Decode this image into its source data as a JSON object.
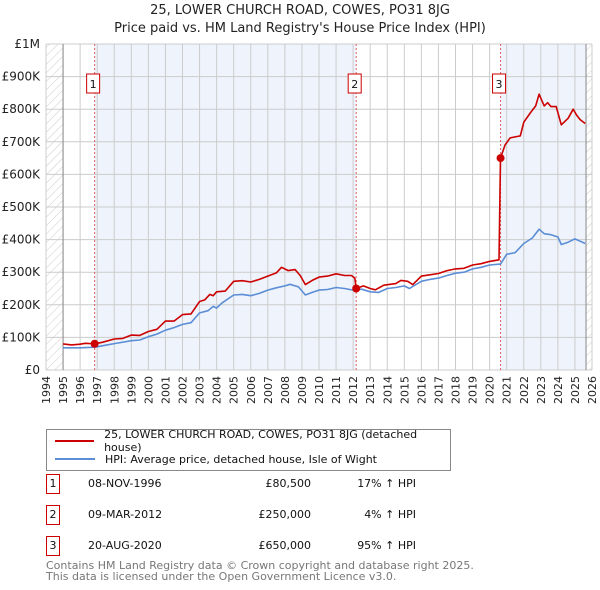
{
  "title_line1": "25, LOWER CHURCH ROAD, COWES, PO31 8JG",
  "title_line2": "Price paid vs. HM Land Registry's House Price Index (HPI)",
  "colors": {
    "property": "#cc0000",
    "hpi": "#5b8ed6",
    "shade": "#eef3fc",
    "grid": "#cccccc"
  },
  "chart_data": {
    "type": "line",
    "title": "25, LOWER CHURCH ROAD, COWES, PO31 8JG - Price paid vs. HM Land Registry's House Price Index (HPI)",
    "xlim": [
      1994,
      2026
    ],
    "ylim": [
      0,
      1000000
    ],
    "data_end": 2025.65,
    "xticks": [
      "1994",
      "1995",
      "1996",
      "1997",
      "1998",
      "1999",
      "2000",
      "2001",
      "2002",
      "2003",
      "2004",
      "2005",
      "2006",
      "2007",
      "2008",
      "2009",
      "2010",
      "2011",
      "2012",
      "2013",
      "2014",
      "2015",
      "2016",
      "2017",
      "2018",
      "2019",
      "2020",
      "2021",
      "2022",
      "2023",
      "2024",
      "2025",
      "2026"
    ],
    "yticks": [
      {
        "v": 0,
        "label": "£0"
      },
      {
        "v": 100000,
        "label": "£100K"
      },
      {
        "v": 200000,
        "label": "£200K"
      },
      {
        "v": 300000,
        "label": "£300K"
      },
      {
        "v": 400000,
        "label": "£400K"
      },
      {
        "v": 500000,
        "label": "£500K"
      },
      {
        "v": 600000,
        "label": "£600K"
      },
      {
        "v": 700000,
        "label": "£700K"
      },
      {
        "v": 800000,
        "label": "£800K"
      },
      {
        "v": 900000,
        "label": "£900K"
      },
      {
        "v": 1000000,
        "label": "£1M"
      }
    ],
    "series": [
      {
        "name": "25, LOWER CHURCH ROAD, COWES, PO31 8JG (detached house)",
        "points": [
          [
            1995,
            80000
          ],
          [
            1995.5,
            77000
          ],
          [
            1996,
            79000
          ],
          [
            1996.3,
            82000
          ],
          [
            1996.85,
            80500
          ],
          [
            1997.3,
            85000
          ],
          [
            1998,
            95000
          ],
          [
            1998.5,
            97000
          ],
          [
            1999,
            107000
          ],
          [
            1999.5,
            106000
          ],
          [
            2000,
            118000
          ],
          [
            2000.5,
            125000
          ],
          [
            2001,
            150000
          ],
          [
            2001.5,
            150000
          ],
          [
            2002,
            170000
          ],
          [
            2002.5,
            172000
          ],
          [
            2003,
            210000
          ],
          [
            2003.3,
            215000
          ],
          [
            2003.6,
            232000
          ],
          [
            2003.8,
            228000
          ],
          [
            2004,
            240000
          ],
          [
            2004.5,
            242000
          ],
          [
            2005,
            272000
          ],
          [
            2005.5,
            274000
          ],
          [
            2006,
            270000
          ],
          [
            2006.5,
            278000
          ],
          [
            2007,
            288000
          ],
          [
            2007.5,
            298000
          ],
          [
            2007.8,
            315000
          ],
          [
            2008.2,
            305000
          ],
          [
            2008.6,
            308000
          ],
          [
            2008.9,
            290000
          ],
          [
            2009.2,
            262000
          ],
          [
            2009.6,
            275000
          ],
          [
            2010,
            285000
          ],
          [
            2010.5,
            288000
          ],
          [
            2011,
            295000
          ],
          [
            2011.5,
            290000
          ],
          [
            2011.9,
            290000
          ],
          [
            2012.1,
            282000
          ],
          [
            2012.18,
            250000
          ],
          [
            2012.6,
            258000
          ],
          [
            2013,
            250000
          ],
          [
            2013.3,
            246000
          ],
          [
            2013.8,
            260000
          ],
          [
            2014.5,
            265000
          ],
          [
            2014.8,
            275000
          ],
          [
            2015.2,
            272000
          ],
          [
            2015.5,
            262000
          ],
          [
            2016,
            288000
          ],
          [
            2016.5,
            292000
          ],
          [
            2017,
            296000
          ],
          [
            2017.5,
            305000
          ],
          [
            2018,
            310000
          ],
          [
            2018.5,
            312000
          ],
          [
            2019,
            322000
          ],
          [
            2019.5,
            326000
          ],
          [
            2020,
            333000
          ],
          [
            2020.55,
            338000
          ],
          [
            2020.64,
            650000
          ],
          [
            2020.9,
            690000
          ],
          [
            2021.2,
            712000
          ],
          [
            2021.8,
            718000
          ],
          [
            2022,
            760000
          ],
          [
            2022.4,
            790000
          ],
          [
            2022.7,
            810000
          ],
          [
            2022.9,
            846000
          ],
          [
            2023.2,
            810000
          ],
          [
            2023.4,
            820000
          ],
          [
            2023.6,
            808000
          ],
          [
            2023.9,
            808000
          ],
          [
            2024.2,
            752000
          ],
          [
            2024.6,
            772000
          ],
          [
            2024.9,
            800000
          ],
          [
            2025.1,
            782000
          ],
          [
            2025.3,
            768000
          ],
          [
            2025.6,
            756000
          ]
        ]
      },
      {
        "name": "HPI: Average price, detached house, Isle of Wight",
        "points": [
          [
            1995,
            68000
          ],
          [
            1996,
            68000
          ],
          [
            1996.85,
            70000
          ],
          [
            1997.5,
            76000
          ],
          [
            1998,
            81000
          ],
          [
            1999,
            90000
          ],
          [
            1999.5,
            92000
          ],
          [
            2000,
            102000
          ],
          [
            2000.5,
            110000
          ],
          [
            2001,
            122000
          ],
          [
            2001.5,
            130000
          ],
          [
            2002,
            140000
          ],
          [
            2002.5,
            145000
          ],
          [
            2003,
            175000
          ],
          [
            2003.5,
            182000
          ],
          [
            2003.8,
            195000
          ],
          [
            2004,
            190000
          ],
          [
            2004.3,
            205000
          ],
          [
            2005,
            230000
          ],
          [
            2005.5,
            232000
          ],
          [
            2006,
            228000
          ],
          [
            2006.5,
            235000
          ],
          [
            2007,
            245000
          ],
          [
            2007.5,
            252000
          ],
          [
            2008,
            258000
          ],
          [
            2008.3,
            263000
          ],
          [
            2008.8,
            255000
          ],
          [
            2009.2,
            230000
          ],
          [
            2009.6,
            238000
          ],
          [
            2010,
            245000
          ],
          [
            2010.5,
            247000
          ],
          [
            2011,
            253000
          ],
          [
            2011.5,
            250000
          ],
          [
            2012,
            245000
          ],
          [
            2012.5,
            248000
          ],
          [
            2013,
            240000
          ],
          [
            2013.5,
            238000
          ],
          [
            2014,
            250000
          ],
          [
            2014.5,
            253000
          ],
          [
            2015,
            258000
          ],
          [
            2015.3,
            250000
          ],
          [
            2016,
            272000
          ],
          [
            2016.5,
            278000
          ],
          [
            2017,
            282000
          ],
          [
            2017.5,
            290000
          ],
          [
            2018,
            297000
          ],
          [
            2018.5,
            300000
          ],
          [
            2019,
            310000
          ],
          [
            2019.5,
            315000
          ],
          [
            2020,
            322000
          ],
          [
            2020.64,
            325000
          ],
          [
            2021,
            355000
          ],
          [
            2021.5,
            360000
          ],
          [
            2022,
            388000
          ],
          [
            2022.5,
            405000
          ],
          [
            2022.9,
            432000
          ],
          [
            2023.2,
            418000
          ],
          [
            2023.6,
            415000
          ],
          [
            2024,
            408000
          ],
          [
            2024.2,
            385000
          ],
          [
            2024.6,
            392000
          ],
          [
            2025,
            402000
          ],
          [
            2025.3,
            395000
          ],
          [
            2025.6,
            388000
          ]
        ]
      }
    ],
    "sales": [
      {
        "label": "1",
        "x": 1996.85,
        "y": 80500
      },
      {
        "label": "2",
        "x": 2012.18,
        "y": 250000
      },
      {
        "label": "3",
        "x": 2020.64,
        "y": 650000
      }
    ],
    "legend_placement": "below"
  },
  "legend": {
    "property": "25, LOWER CHURCH ROAD, COWES, PO31 8JG (detached house)",
    "hpi": "HPI: Average price, detached house, Isle of Wight"
  },
  "transactions": [
    {
      "num": "1",
      "date": "08-NOV-1996",
      "price": "£80,500",
      "hpi": "17% ↑ HPI"
    },
    {
      "num": "2",
      "date": "09-MAR-2012",
      "price": "£250,000",
      "hpi": "4% ↑ HPI"
    },
    {
      "num": "3",
      "date": "20-AUG-2020",
      "price": "£650,000",
      "hpi": "95% ↑ HPI"
    }
  ],
  "footer": {
    "line1": "Contains HM Land Registry data © Crown copyright and database right 2025.",
    "line2": "This data is licensed under the Open Government Licence v3.0."
  }
}
